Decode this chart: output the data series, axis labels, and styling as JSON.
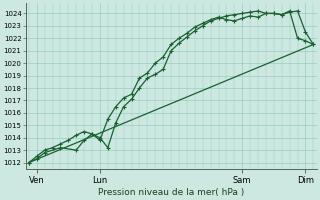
{
  "xlabel": "Pression niveau de la mer( hPa )",
  "bg_color": "#cce8e0",
  "grid_color": "#99ccc4",
  "line_color": "#1a6030",
  "ylim": [
    1011.5,
    1024.8
  ],
  "yticks": [
    1012,
    1013,
    1014,
    1015,
    1016,
    1017,
    1018,
    1019,
    1020,
    1021,
    1022,
    1023,
    1024
  ],
  "xlim": [
    -0.2,
    18.2
  ],
  "x_tick_positions": [
    0.5,
    4.5,
    13.5,
    17.5
  ],
  "x_tick_labels": [
    "Ven",
    "Lun",
    "Sam",
    "Dim"
  ],
  "series1_x": [
    0,
    0.5,
    1.0,
    2.0,
    3.0,
    3.5,
    4.0,
    4.5,
    5.0,
    5.5,
    6.0,
    6.5,
    7.0,
    7.5,
    8.0,
    8.5,
    9.0,
    9.5,
    10.0,
    10.5,
    11.0,
    11.5,
    12.0,
    12.5,
    13.0,
    13.5,
    14.0,
    14.5,
    15.0,
    15.5,
    16.0,
    16.5,
    17.0,
    17.5,
    18.0
  ],
  "series1_y": [
    1012.0,
    1012.3,
    1012.8,
    1013.2,
    1013.0,
    1013.8,
    1014.3,
    1014.0,
    1013.2,
    1015.2,
    1016.5,
    1017.1,
    1018.0,
    1018.8,
    1019.1,
    1019.5,
    1021.0,
    1021.6,
    1022.1,
    1022.6,
    1023.0,
    1023.4,
    1023.6,
    1023.8,
    1023.9,
    1024.0,
    1024.1,
    1024.2,
    1024.0,
    1024.0,
    1023.9,
    1024.1,
    1024.2,
    1022.5,
    1021.5
  ],
  "series2_x": [
    0,
    0.5,
    1.0,
    1.5,
    2.0,
    2.5,
    3.0,
    3.5,
    4.0,
    4.5,
    5.0,
    5.5,
    6.0,
    6.5,
    7.0,
    7.5,
    8.0,
    8.5,
    9.0,
    9.5,
    10.0,
    10.5,
    11.0,
    11.5,
    12.0,
    12.5,
    13.0,
    13.5,
    14.0,
    14.5,
    15.0,
    15.5,
    16.0,
    16.5,
    17.0,
    17.5,
    18.0
  ],
  "series2_y": [
    1012.0,
    1012.5,
    1013.0,
    1013.2,
    1013.5,
    1013.8,
    1014.2,
    1014.5,
    1014.3,
    1013.8,
    1015.5,
    1016.5,
    1017.2,
    1017.5,
    1018.8,
    1019.2,
    1020.0,
    1020.5,
    1021.5,
    1022.0,
    1022.4,
    1022.9,
    1023.2,
    1023.5,
    1023.7,
    1023.5,
    1023.4,
    1023.6,
    1023.8,
    1023.7,
    1024.0,
    1024.0,
    1023.9,
    1024.2,
    1022.0,
    1021.8,
    1021.5
  ],
  "series3_x": [
    0,
    18
  ],
  "series3_y": [
    1012.0,
    1021.5
  ]
}
